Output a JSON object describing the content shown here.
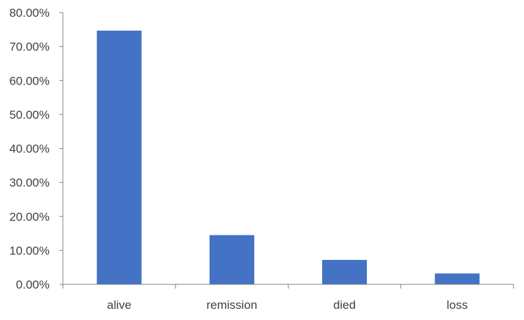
{
  "chart_data": {
    "type": "bar",
    "categories": [
      "alive",
      "remission",
      "died",
      "loss"
    ],
    "values": [
      74.7,
      14.5,
      7.2,
      3.2
    ],
    "value_format": "percent",
    "ylim": [
      0,
      80
    ],
    "yticks": [
      0,
      10,
      20,
      30,
      40,
      50,
      60,
      70,
      80
    ],
    "ytick_labels": [
      "0.00%",
      "10.00%",
      "20.00%",
      "30.00%",
      "40.00%",
      "50.00%",
      "60.00%",
      "70.00%",
      "80.00%"
    ],
    "title": "",
    "xlabel": "",
    "ylabel": "",
    "grid": false,
    "legend": "none",
    "bar_color": "#4472C4",
    "axis_color": "#808080",
    "text_color": "#404040"
  }
}
